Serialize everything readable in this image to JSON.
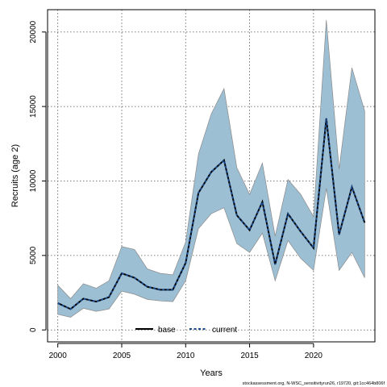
{
  "chart_data": {
    "type": "line",
    "xlabel": "Years",
    "ylabel": "Recruits (age 2)",
    "xlim": [
      1999.2,
      2024.8
    ],
    "ylim": [
      -800,
      21500
    ],
    "xticks": [
      2000,
      2005,
      2010,
      2015,
      2020
    ],
    "yticks": [
      0,
      5000,
      10000,
      15000,
      20000
    ],
    "grid": true,
    "legend": {
      "placement": "bottom-center",
      "entries": [
        "base",
        "current"
      ]
    },
    "colors": {
      "band": "#9dbfd3",
      "band_edge": "#8a8a8a",
      "base": "#000000",
      "current": "#1a4a8c"
    },
    "x": [
      2000,
      2001,
      2002,
      2003,
      2004,
      2005,
      2006,
      2007,
      2008,
      2009,
      2010,
      2011,
      2012,
      2013,
      2014,
      2015,
      2016,
      2017,
      2018,
      2019,
      2020,
      2021,
      2022,
      2023,
      2024
    ],
    "series": [
      {
        "name": "base",
        "values": [
          1800,
          1400,
          2100,
          1900,
          2200,
          3800,
          3500,
          2900,
          2700,
          2700,
          4500,
          9200,
          10600,
          11400,
          7700,
          6700,
          8600,
          4400,
          7800,
          6600,
          5500,
          14200,
          6400,
          9600,
          7200
        ]
      },
      {
        "name": "current",
        "values": [
          1800,
          1400,
          2100,
          1900,
          2200,
          3800,
          3500,
          2900,
          2700,
          2700,
          4500,
          9200,
          10600,
          11400,
          7700,
          6700,
          8600,
          4400,
          7800,
          6600,
          5500,
          14200,
          6400,
          9600,
          7200
        ]
      }
    ],
    "interval_lower": [
      1050,
      850,
      1450,
      1250,
      1400,
      2600,
      2400,
      2050,
      1950,
      1900,
      3300,
      6800,
      7800,
      8200,
      5800,
      5200,
      6500,
      3300,
      6000,
      4800,
      4000,
      9500,
      4000,
      5200,
      3500
    ],
    "interval_upper": [
      3000,
      2100,
      3100,
      2800,
      3300,
      5600,
      5400,
      4100,
      3800,
      3700,
      5900,
      11800,
      14500,
      16200,
      10900,
      9100,
      11200,
      6300,
      10100,
      9100,
      7600,
      20800,
      10800,
      17600,
      14700
    ]
  },
  "footnote": "stockassessment.org, N-WSC_sensitivityrun26, r19720, git:1cc464b806f"
}
